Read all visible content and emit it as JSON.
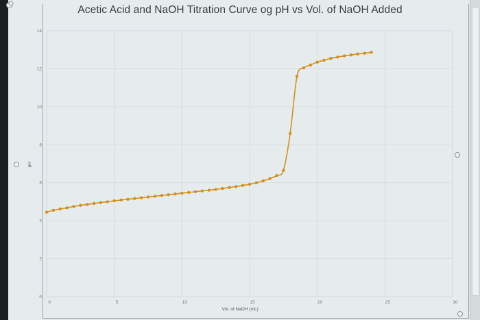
{
  "chart_data": {
    "type": "line",
    "title": "Acetic Acid and NaOH Titration Curve og pH vs Vol. of NaOH Added",
    "xlabel": "Vol. of NaOH (mL)",
    "ylabel": "pH",
    "xlim": [
      0,
      30
    ],
    "ylim": [
      0,
      14
    ],
    "x_ticks": [
      0,
      5,
      10,
      15,
      20,
      25,
      30
    ],
    "y_ticks": [
      0,
      2,
      4,
      6,
      8,
      10,
      12,
      14
    ],
    "grid": true,
    "legend": "none",
    "series": [
      {
        "name": "pH",
        "color": "#d4901a",
        "markers": true,
        "x": [
          0,
          0.5,
          1,
          1.5,
          2,
          2.5,
          3,
          3.5,
          4,
          4.5,
          5,
          5.5,
          6,
          6.5,
          7,
          7.5,
          8,
          8.5,
          9,
          9.5,
          10,
          10.5,
          11,
          11.5,
          12,
          12.5,
          13,
          13.5,
          14,
          14.5,
          15,
          15.5,
          16,
          16.5,
          17,
          17.5,
          18,
          18.5,
          19,
          19.5,
          20,
          20.5,
          21,
          21.5,
          22,
          22.5,
          23,
          23.5,
          24
        ],
        "y": [
          4.45,
          4.55,
          4.62,
          4.68,
          4.75,
          4.81,
          4.86,
          4.91,
          4.96,
          5.0,
          5.05,
          5.09,
          5.13,
          5.17,
          5.21,
          5.25,
          5.29,
          5.33,
          5.37,
          5.41,
          5.45,
          5.49,
          5.53,
          5.57,
          5.61,
          5.65,
          5.7,
          5.75,
          5.8,
          5.86,
          5.92,
          6.0,
          6.1,
          6.22,
          6.38,
          6.65,
          8.6,
          11.6,
          12.05,
          12.2,
          12.35,
          12.45,
          12.55,
          12.62,
          12.68,
          12.73,
          12.78,
          12.82,
          12.87
        ]
      }
    ]
  },
  "window": {
    "handles": [
      "top-left",
      "left-middle",
      "right-middle",
      "bottom-right",
      "bottom-left"
    ]
  }
}
